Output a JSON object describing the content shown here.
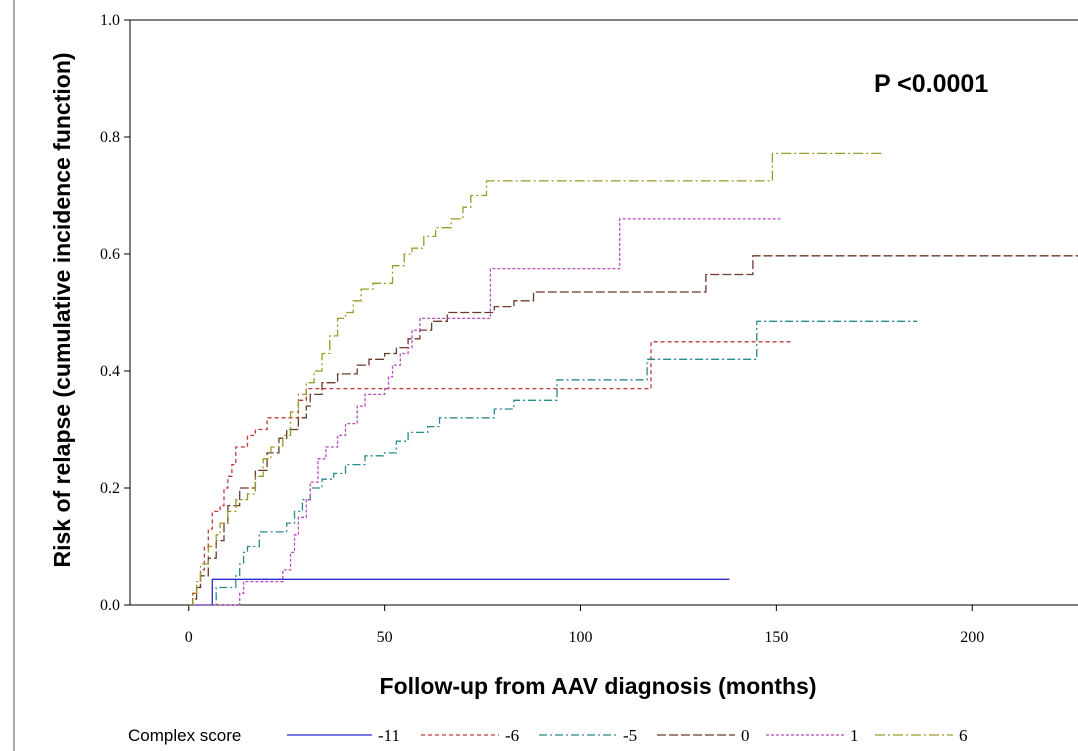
{
  "chart_data": {
    "type": "line",
    "step": true,
    "annotation": "P <0.0001",
    "xlabel": "Follow-up from AAV diagnosis (months)",
    "ylabel": "Risk of relapse (cumulative incidence function)",
    "xlim": [
      -15,
      227
    ],
    "ylim": [
      0,
      1.0
    ],
    "x_ticks": [
      0,
      50,
      100,
      150,
      200
    ],
    "y_ticks": [
      "0.0",
      "0.2",
      "0.4",
      "0.6",
      "0.8",
      "1.0"
    ],
    "grid": false,
    "legend": {
      "title": "Complex score",
      "placement": "bottom"
    },
    "series": [
      {
        "name": "-11",
        "color": "#2b2bd6",
        "dash": "none",
        "points": [
          [
            0,
            0
          ],
          [
            6,
            0
          ],
          [
            6,
            0.044
          ],
          [
            138,
            0.044
          ]
        ]
      },
      {
        "name": "-6",
        "color": "#c0393b",
        "dash": "4,3",
        "points": [
          [
            0,
            0
          ],
          [
            1,
            0.02
          ],
          [
            2,
            0.03
          ],
          [
            3,
            0.06
          ],
          [
            4,
            0.1
          ],
          [
            5,
            0.13
          ],
          [
            6,
            0.16
          ],
          [
            8,
            0.17
          ],
          [
            9,
            0.2
          ],
          [
            10,
            0.22
          ],
          [
            11,
            0.24
          ],
          [
            12,
            0.27
          ],
          [
            15,
            0.29
          ],
          [
            17,
            0.3
          ],
          [
            20,
            0.32
          ],
          [
            28,
            0.35
          ],
          [
            30,
            0.37
          ],
          [
            118,
            0.37
          ],
          [
            118,
            0.45
          ],
          [
            154,
            0.45
          ]
        ]
      },
      {
        "name": "-5",
        "color": "#2a8a8a",
        "dash": "8,3,2,3",
        "points": [
          [
            0,
            0
          ],
          [
            5,
            0
          ],
          [
            7,
            0.03
          ],
          [
            10,
            0.03
          ],
          [
            12,
            0.05
          ],
          [
            13,
            0.07
          ],
          [
            14,
            0.09
          ],
          [
            15,
            0.1
          ],
          [
            18,
            0.125
          ],
          [
            24,
            0.125
          ],
          [
            25,
            0.14
          ],
          [
            27,
            0.16
          ],
          [
            29,
            0.18
          ],
          [
            31,
            0.2
          ],
          [
            34,
            0.215
          ],
          [
            37,
            0.225
          ],
          [
            40,
            0.24
          ],
          [
            45,
            0.255
          ],
          [
            50,
            0.26
          ],
          [
            53,
            0.28
          ],
          [
            56,
            0.295
          ],
          [
            61,
            0.305
          ],
          [
            64,
            0.32
          ],
          [
            75,
            0.32
          ],
          [
            78,
            0.335
          ],
          [
            83,
            0.35
          ],
          [
            88,
            0.35
          ],
          [
            94,
            0.385
          ],
          [
            103,
            0.385
          ],
          [
            116,
            0.385
          ],
          [
            117,
            0.42
          ],
          [
            145,
            0.42
          ],
          [
            145,
            0.485
          ],
          [
            186,
            0.485
          ]
        ]
      },
      {
        "name": "0",
        "color": "#6b3a2a",
        "dash": "9,3",
        "points": [
          [
            0,
            0
          ],
          [
            1,
            0.01
          ],
          [
            2,
            0.03
          ],
          [
            3,
            0.05
          ],
          [
            5,
            0.08
          ],
          [
            7,
            0.11
          ],
          [
            9,
            0.14
          ],
          [
            10,
            0.17
          ],
          [
            13,
            0.2
          ],
          [
            17,
            0.23
          ],
          [
            20,
            0.26
          ],
          [
            23,
            0.285
          ],
          [
            25,
            0.3
          ],
          [
            28,
            0.32
          ],
          [
            30,
            0.34
          ],
          [
            31,
            0.36
          ],
          [
            34,
            0.38
          ],
          [
            38,
            0.395
          ],
          [
            43,
            0.41
          ],
          [
            46,
            0.42
          ],
          [
            50,
            0.43
          ],
          [
            53,
            0.44
          ],
          [
            56,
            0.455
          ],
          [
            59,
            0.47
          ],
          [
            62,
            0.485
          ],
          [
            66,
            0.5
          ],
          [
            78,
            0.51
          ],
          [
            83,
            0.52
          ],
          [
            88,
            0.535
          ],
          [
            131,
            0.535
          ],
          [
            132,
            0.565
          ],
          [
            142,
            0.565
          ],
          [
            144,
            0.597
          ],
          [
            227,
            0.597
          ]
        ]
      },
      {
        "name": "1",
        "color": "#b84cc0",
        "dash": "3,2",
        "points": [
          [
            0,
            0
          ],
          [
            13,
            0
          ],
          [
            13,
            0.02
          ],
          [
            14,
            0.04
          ],
          [
            22,
            0.04
          ],
          [
            24,
            0.06
          ],
          [
            26,
            0.09
          ],
          [
            27,
            0.12
          ],
          [
            28,
            0.15
          ],
          [
            30,
            0.18
          ],
          [
            31,
            0.21
          ],
          [
            33,
            0.25
          ],
          [
            35,
            0.27
          ],
          [
            38,
            0.29
          ],
          [
            40,
            0.31
          ],
          [
            43,
            0.34
          ],
          [
            45,
            0.36
          ],
          [
            50,
            0.37
          ],
          [
            51,
            0.39
          ],
          [
            52,
            0.41
          ],
          [
            54,
            0.43
          ],
          [
            56,
            0.44
          ],
          [
            57,
            0.47
          ],
          [
            59,
            0.49
          ],
          [
            76,
            0.49
          ],
          [
            77,
            0.575
          ],
          [
            110,
            0.575
          ],
          [
            110,
            0.66
          ],
          [
            151,
            0.66
          ]
        ]
      },
      {
        "name": "6",
        "color": "#9a9a2a",
        "dash": "10,3,2,3",
        "points": [
          [
            0,
            0
          ],
          [
            1,
            0.02
          ],
          [
            2,
            0.04
          ],
          [
            3,
            0.07
          ],
          [
            5,
            0.1
          ],
          [
            7,
            0.12
          ],
          [
            8,
            0.14
          ],
          [
            10,
            0.16
          ],
          [
            12,
            0.18
          ],
          [
            15,
            0.19
          ],
          [
            17,
            0.22
          ],
          [
            19,
            0.25
          ],
          [
            21,
            0.27
          ],
          [
            24,
            0.29
          ],
          [
            26,
            0.33
          ],
          [
            28,
            0.36
          ],
          [
            30,
            0.38
          ],
          [
            32,
            0.4
          ],
          [
            34,
            0.43
          ],
          [
            36,
            0.46
          ],
          [
            38,
            0.49
          ],
          [
            40,
            0.5
          ],
          [
            42,
            0.52
          ],
          [
            44,
            0.54
          ],
          [
            47,
            0.55
          ],
          [
            52,
            0.58
          ],
          [
            55,
            0.6
          ],
          [
            57,
            0.61
          ],
          [
            60,
            0.63
          ],
          [
            63,
            0.645
          ],
          [
            67,
            0.66
          ],
          [
            70,
            0.68
          ],
          [
            72,
            0.7
          ],
          [
            76,
            0.725
          ],
          [
            149,
            0.725
          ],
          [
            149,
            0.772
          ],
          [
            177,
            0.772
          ]
        ]
      }
    ]
  }
}
